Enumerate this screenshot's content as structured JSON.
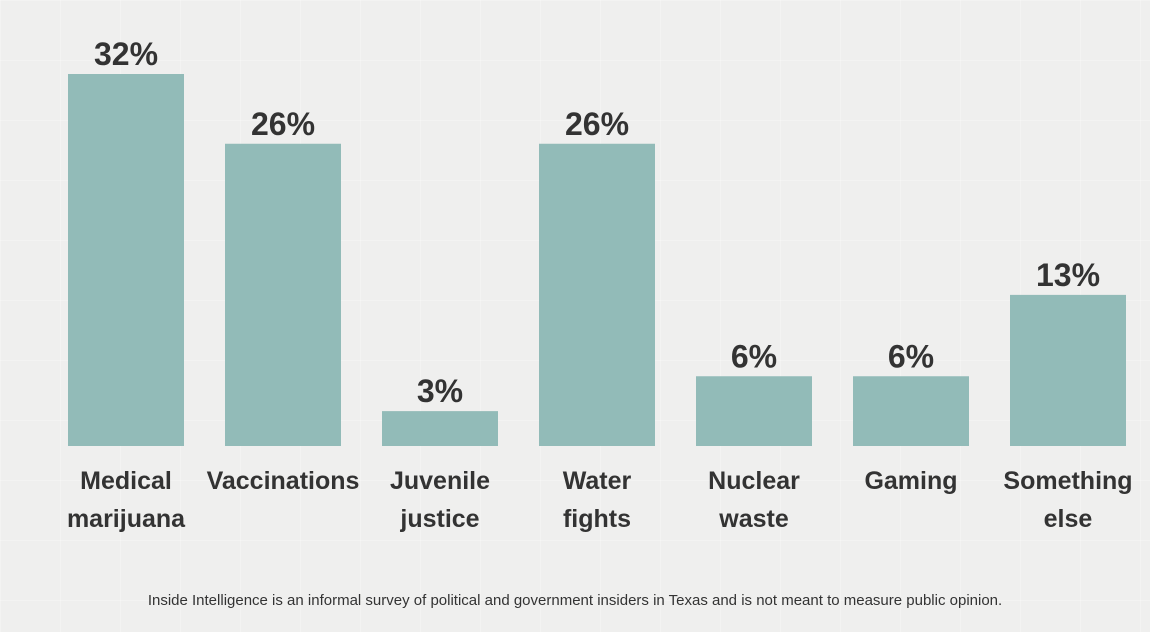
{
  "colors": {
    "bar": "#92bbb8",
    "value_label": "#333333",
    "category_label": "#333333",
    "background": "#efefee"
  },
  "chart_data": {
    "type": "bar",
    "title": "",
    "xlabel": "",
    "ylabel": "",
    "ylim": [
      0,
      32
    ],
    "grid": false,
    "legend": "none",
    "categories": [
      [
        "Medical",
        "marijuana"
      ],
      [
        "Vaccinations"
      ],
      [
        "Juvenile",
        "justice"
      ],
      [
        "Water",
        "fights"
      ],
      [
        "Nuclear",
        "waste"
      ],
      [
        "Gaming"
      ],
      [
        "Something",
        "else"
      ]
    ],
    "values": [
      32,
      26,
      3,
      26,
      6,
      6,
      13
    ],
    "value_labels": [
      "32%",
      "26%",
      "3%",
      "26%",
      "6%",
      "6%",
      "13%"
    ]
  },
  "footnote": "Inside Intelligence is an informal survey of political and government insiders in Texas and is not meant to measure public opinion."
}
